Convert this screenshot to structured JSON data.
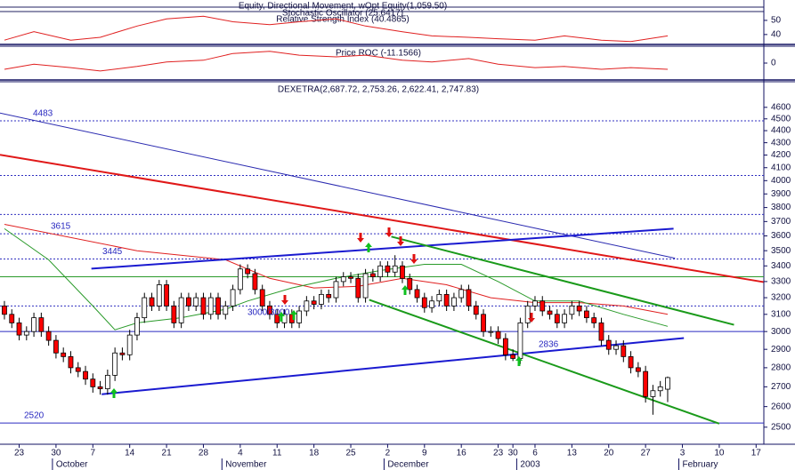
{
  "chart_data": [
    {
      "type": "candlestick",
      "title": "DEXETRA(2,687.72, 2,753.26, 2,622.41, 2,747.83)",
      "log": true,
      "ylim": [
        2420,
        4830
      ],
      "yticks": [
        2500,
        2600,
        2700,
        2800,
        2900,
        3000,
        3100,
        3200,
        3300,
        3400,
        3500,
        3600,
        3700,
        3800,
        3900,
        4000,
        4100,
        4200,
        4300,
        4400,
        4500,
        4600
      ],
      "xlim": [
        -0.6,
        103.05
      ],
      "xticks": [
        {
          "value": 2,
          "label": "23"
        },
        {
          "value": 7,
          "label": "30"
        },
        {
          "value": 12,
          "label": "7"
        },
        {
          "value": 17,
          "label": "14"
        },
        {
          "value": 22,
          "label": "21"
        },
        {
          "value": 27,
          "label": "28"
        },
        {
          "value": 32,
          "label": "4"
        },
        {
          "value": 37,
          "label": "11"
        },
        {
          "value": 42,
          "label": "18"
        },
        {
          "value": 47,
          "label": "25"
        },
        {
          "value": 52,
          "label": "2"
        },
        {
          "value": 57,
          "label": "9"
        },
        {
          "value": 62,
          "label": "16"
        },
        {
          "value": 67,
          "label": "23"
        },
        {
          "value": 69,
          "label": "30"
        },
        {
          "value": 72,
          "label": "6"
        },
        {
          "value": 77,
          "label": "13"
        },
        {
          "value": 82,
          "label": "20"
        },
        {
          "value": 87,
          "label": "27"
        },
        {
          "value": 92,
          "label": "3"
        },
        {
          "value": 97,
          "label": "10"
        },
        {
          "value": 102,
          "label": "17"
        }
      ],
      "months": [
        {
          "value": 7,
          "label": "October"
        },
        {
          "value": 30,
          "label": "November"
        },
        {
          "value": 52,
          "label": "December"
        },
        {
          "value": 70,
          "label": "2003"
        },
        {
          "value": 92,
          "label": "February"
        }
      ],
      "up_color": "#ffffff",
      "down_color": "#ff0000",
      "open": [
        3150,
        3100,
        3050,
        2980,
        3000,
        3080,
        3000,
        2950,
        2880,
        2860,
        2800,
        2780,
        2740,
        2700,
        2690,
        2760,
        2880,
        2870,
        2980,
        3080,
        3200,
        3150,
        3280,
        3150,
        3050,
        3200,
        3150,
        3200,
        3100,
        3200,
        3100,
        3150,
        3250,
        3380,
        3350,
        3250,
        3150,
        3100,
        3050,
        3100,
        3050,
        3120,
        3180,
        3160,
        3220,
        3200,
        3300,
        3330,
        3320,
        3200,
        3350,
        3330,
        3400,
        3360,
        3400,
        3320,
        3250,
        3200,
        3140,
        3180,
        3220,
        3150,
        3200,
        3250,
        3150,
        3100,
        3000,
        3000,
        2960,
        2870,
        2850,
        3050,
        3150,
        3180,
        3120,
        3100,
        3050,
        3100,
        3150,
        3120,
        3080,
        3050,
        2950,
        2900,
        2920,
        2860,
        2800,
        2780,
        2650,
        2680,
        2687.72
      ],
      "high": [
        3180,
        3130,
        3080,
        3030,
        3110,
        3110,
        3030,
        2980,
        2910,
        2890,
        2830,
        2810,
        2770,
        2730,
        2790,
        2910,
        2910,
        3010,
        3110,
        3230,
        3230,
        3310,
        3310,
        3180,
        3230,
        3230,
        3230,
        3230,
        3230,
        3230,
        3180,
        3280,
        3410,
        3410,
        3380,
        3280,
        3180,
        3130,
        3130,
        3130,
        3150,
        3210,
        3210,
        3250,
        3250,
        3330,
        3360,
        3360,
        3350,
        3380,
        3380,
        3430,
        3430,
        3470,
        3430,
        3350,
        3280,
        3230,
        3210,
        3250,
        3250,
        3230,
        3280,
        3280,
        3180,
        3130,
        3030,
        3030,
        2990,
        2900,
        3080,
        3180,
        3210,
        3210,
        3150,
        3130,
        3130,
        3180,
        3180,
        3150,
        3110,
        3080,
        2980,
        2950,
        2950,
        2890,
        2830,
        2810,
        2710,
        2730,
        2753.26
      ],
      "low": [
        3070,
        3020,
        2950,
        2950,
        2970,
        2970,
        2920,
        2850,
        2830,
        2770,
        2750,
        2710,
        2670,
        2660,
        2660,
        2730,
        2840,
        2840,
        2950,
        3050,
        3120,
        3120,
        3120,
        3020,
        3020,
        3120,
        3120,
        3070,
        3070,
        3070,
        3070,
        3120,
        3220,
        3320,
        3220,
        3120,
        3070,
        3020,
        3020,
        3020,
        3020,
        3090,
        3130,
        3130,
        3170,
        3170,
        3270,
        3290,
        3170,
        3170,
        3300,
        3300,
        3330,
        3330,
        3290,
        3220,
        3170,
        3110,
        3110,
        3150,
        3120,
        3120,
        3170,
        3120,
        3070,
        2970,
        2970,
        2930,
        2840,
        2836,
        2820,
        3020,
        3120,
        3090,
        3070,
        3020,
        3020,
        3070,
        3090,
        3050,
        3020,
        2920,
        2870,
        2870,
        2830,
        2770,
        2750,
        2620,
        2560,
        2650,
        2622.41
      ],
      "close": [
        3100,
        3050,
        2980,
        3000,
        3080,
        3000,
        2950,
        2880,
        2860,
        2800,
        2780,
        2740,
        2700,
        2690,
        2760,
        2880,
        2870,
        2980,
        3080,
        3200,
        3150,
        3280,
        3150,
        3050,
        3200,
        3150,
        3200,
        3100,
        3200,
        3100,
        3150,
        3250,
        3380,
        3350,
        3250,
        3150,
        3100,
        3050,
        3100,
        3050,
        3120,
        3180,
        3160,
        3220,
        3200,
        3300,
        3330,
        3320,
        3200,
        3350,
        3330,
        3400,
        3360,
        3400,
        3320,
        3250,
        3200,
        3140,
        3180,
        3220,
        3150,
        3200,
        3250,
        3150,
        3100,
        3000,
        3000,
        2960,
        2870,
        2850,
        3050,
        3150,
        3180,
        3120,
        3100,
        3050,
        3100,
        3150,
        3120,
        3080,
        3050,
        2950,
        2900,
        2920,
        2860,
        2800,
        2780,
        2650,
        2680,
        2700,
        2747.83
      ],
      "overlays": [
        {
          "color": "#e02020",
          "x": [
            0,
            18,
            30,
            36,
            42,
            48,
            54,
            60,
            66,
            72,
            78,
            84,
            90
          ],
          "values": [
            3680,
            3500,
            3440,
            3320,
            3260,
            3270,
            3320,
            3280,
            3200,
            3170,
            3170,
            3150,
            3100
          ]
        },
        {
          "color": "#2a9a2a",
          "x": [
            0,
            6,
            12,
            15,
            18,
            24,
            30,
            33,
            39,
            45,
            51,
            57,
            62,
            67,
            72,
            78,
            84,
            90
          ],
          "values": [
            3650,
            3440,
            3150,
            3010,
            3050,
            3080,
            3130,
            3180,
            3260,
            3320,
            3370,
            3410,
            3410,
            3300,
            3180,
            3180,
            3100,
            3030
          ]
        }
      ],
      "trend_lines": [
        {
          "color": "#2a2ab0",
          "width": 1,
          "x": [
            -0.6,
            91
          ],
          "values": [
            4550,
            3450
          ]
        },
        {
          "color": "#e01818",
          "width": 2,
          "x": [
            -0.6,
            103
          ],
          "values": [
            4202,
            3297
          ]
        },
        {
          "color": "#1a1ad0",
          "width": 2,
          "x": [
            11.8,
            90.8
          ],
          "values": [
            3382,
            3650
          ]
        },
        {
          "color": "#1a1ad0",
          "width": 2,
          "x": [
            13.2,
            92.2
          ],
          "values": [
            2662,
            2963
          ]
        },
        {
          "color": "#1a9a1a",
          "width": 2,
          "x": [
            52.5,
            99
          ],
          "values": [
            3595,
            3039
          ]
        },
        {
          "color": "#1a9a1a",
          "width": 2,
          "x": [
            49.5,
            97
          ],
          "values": [
            3187,
            2517
          ]
        }
      ],
      "levels": [
        {
          "value": 4483,
          "style": "dotted",
          "color": "#3030c0",
          "labeled": true
        },
        {
          "value": 4040,
          "style": "dotted",
          "color": "#3030c0",
          "labeled": false
        },
        {
          "value": 3750,
          "style": "dotted",
          "color": "#3030c0",
          "labeled": false
        },
        {
          "value": 3615,
          "style": "dotted",
          "color": "#3030c0",
          "labeled": true
        },
        {
          "value": 3445,
          "style": "dotted",
          "color": "#3030c0",
          "labeled": true
        },
        {
          "value": 3330,
          "style": "solid",
          "color": "#2a9a2a",
          "labeled": false
        },
        {
          "value": 3150,
          "style": "dotted",
          "color": "#3030c0",
          "labeled": false
        },
        {
          "value": 3000,
          "style": "solid",
          "color": "#2a2ac0",
          "labeled": false
        },
        {
          "value": 2520,
          "style": "solid",
          "color": "#2a2ac0",
          "labeled": true
        }
      ],
      "annotations": [
        "3000/3000",
        "2836"
      ]
    },
    {
      "type": "line",
      "labels": [
        "Equity, Directional Movement, wOpt Equity(1,059.50)",
        "Stochastic Oscillator (25.6417)",
        "Relative Strength Index (40.4865)"
      ],
      "ylim": [
        33,
        64.4
      ],
      "yticks": [
        40,
        50
      ],
      "color": "#e02020",
      "x": [
        0,
        4,
        9,
        13,
        18,
        22,
        27,
        31,
        36,
        40,
        45,
        49,
        54,
        58,
        63,
        67,
        72,
        76,
        81,
        85,
        90
      ],
      "values": [
        36,
        42,
        36,
        38,
        46,
        51,
        53,
        49,
        47,
        49,
        51,
        46,
        42,
        39,
        38,
        37,
        36,
        39,
        36,
        35,
        39
      ]
    },
    {
      "type": "line",
      "labels": [
        "Price ROC (-11.1566)"
      ],
      "ylim": [
        -30,
        30
      ],
      "yticks": [
        0
      ],
      "color": "#e02020",
      "x": [
        0,
        4,
        9,
        13,
        18,
        22,
        27,
        31,
        36,
        40,
        45,
        49,
        54,
        58,
        63,
        67,
        72,
        76,
        81,
        85,
        90
      ],
      "values": [
        -11,
        -2,
        -8,
        -14,
        -6,
        2,
        5,
        17,
        21,
        14,
        11,
        14,
        5,
        2,
        8,
        -2,
        -8,
        -6,
        -11,
        -8,
        -11
      ]
    }
  ]
}
